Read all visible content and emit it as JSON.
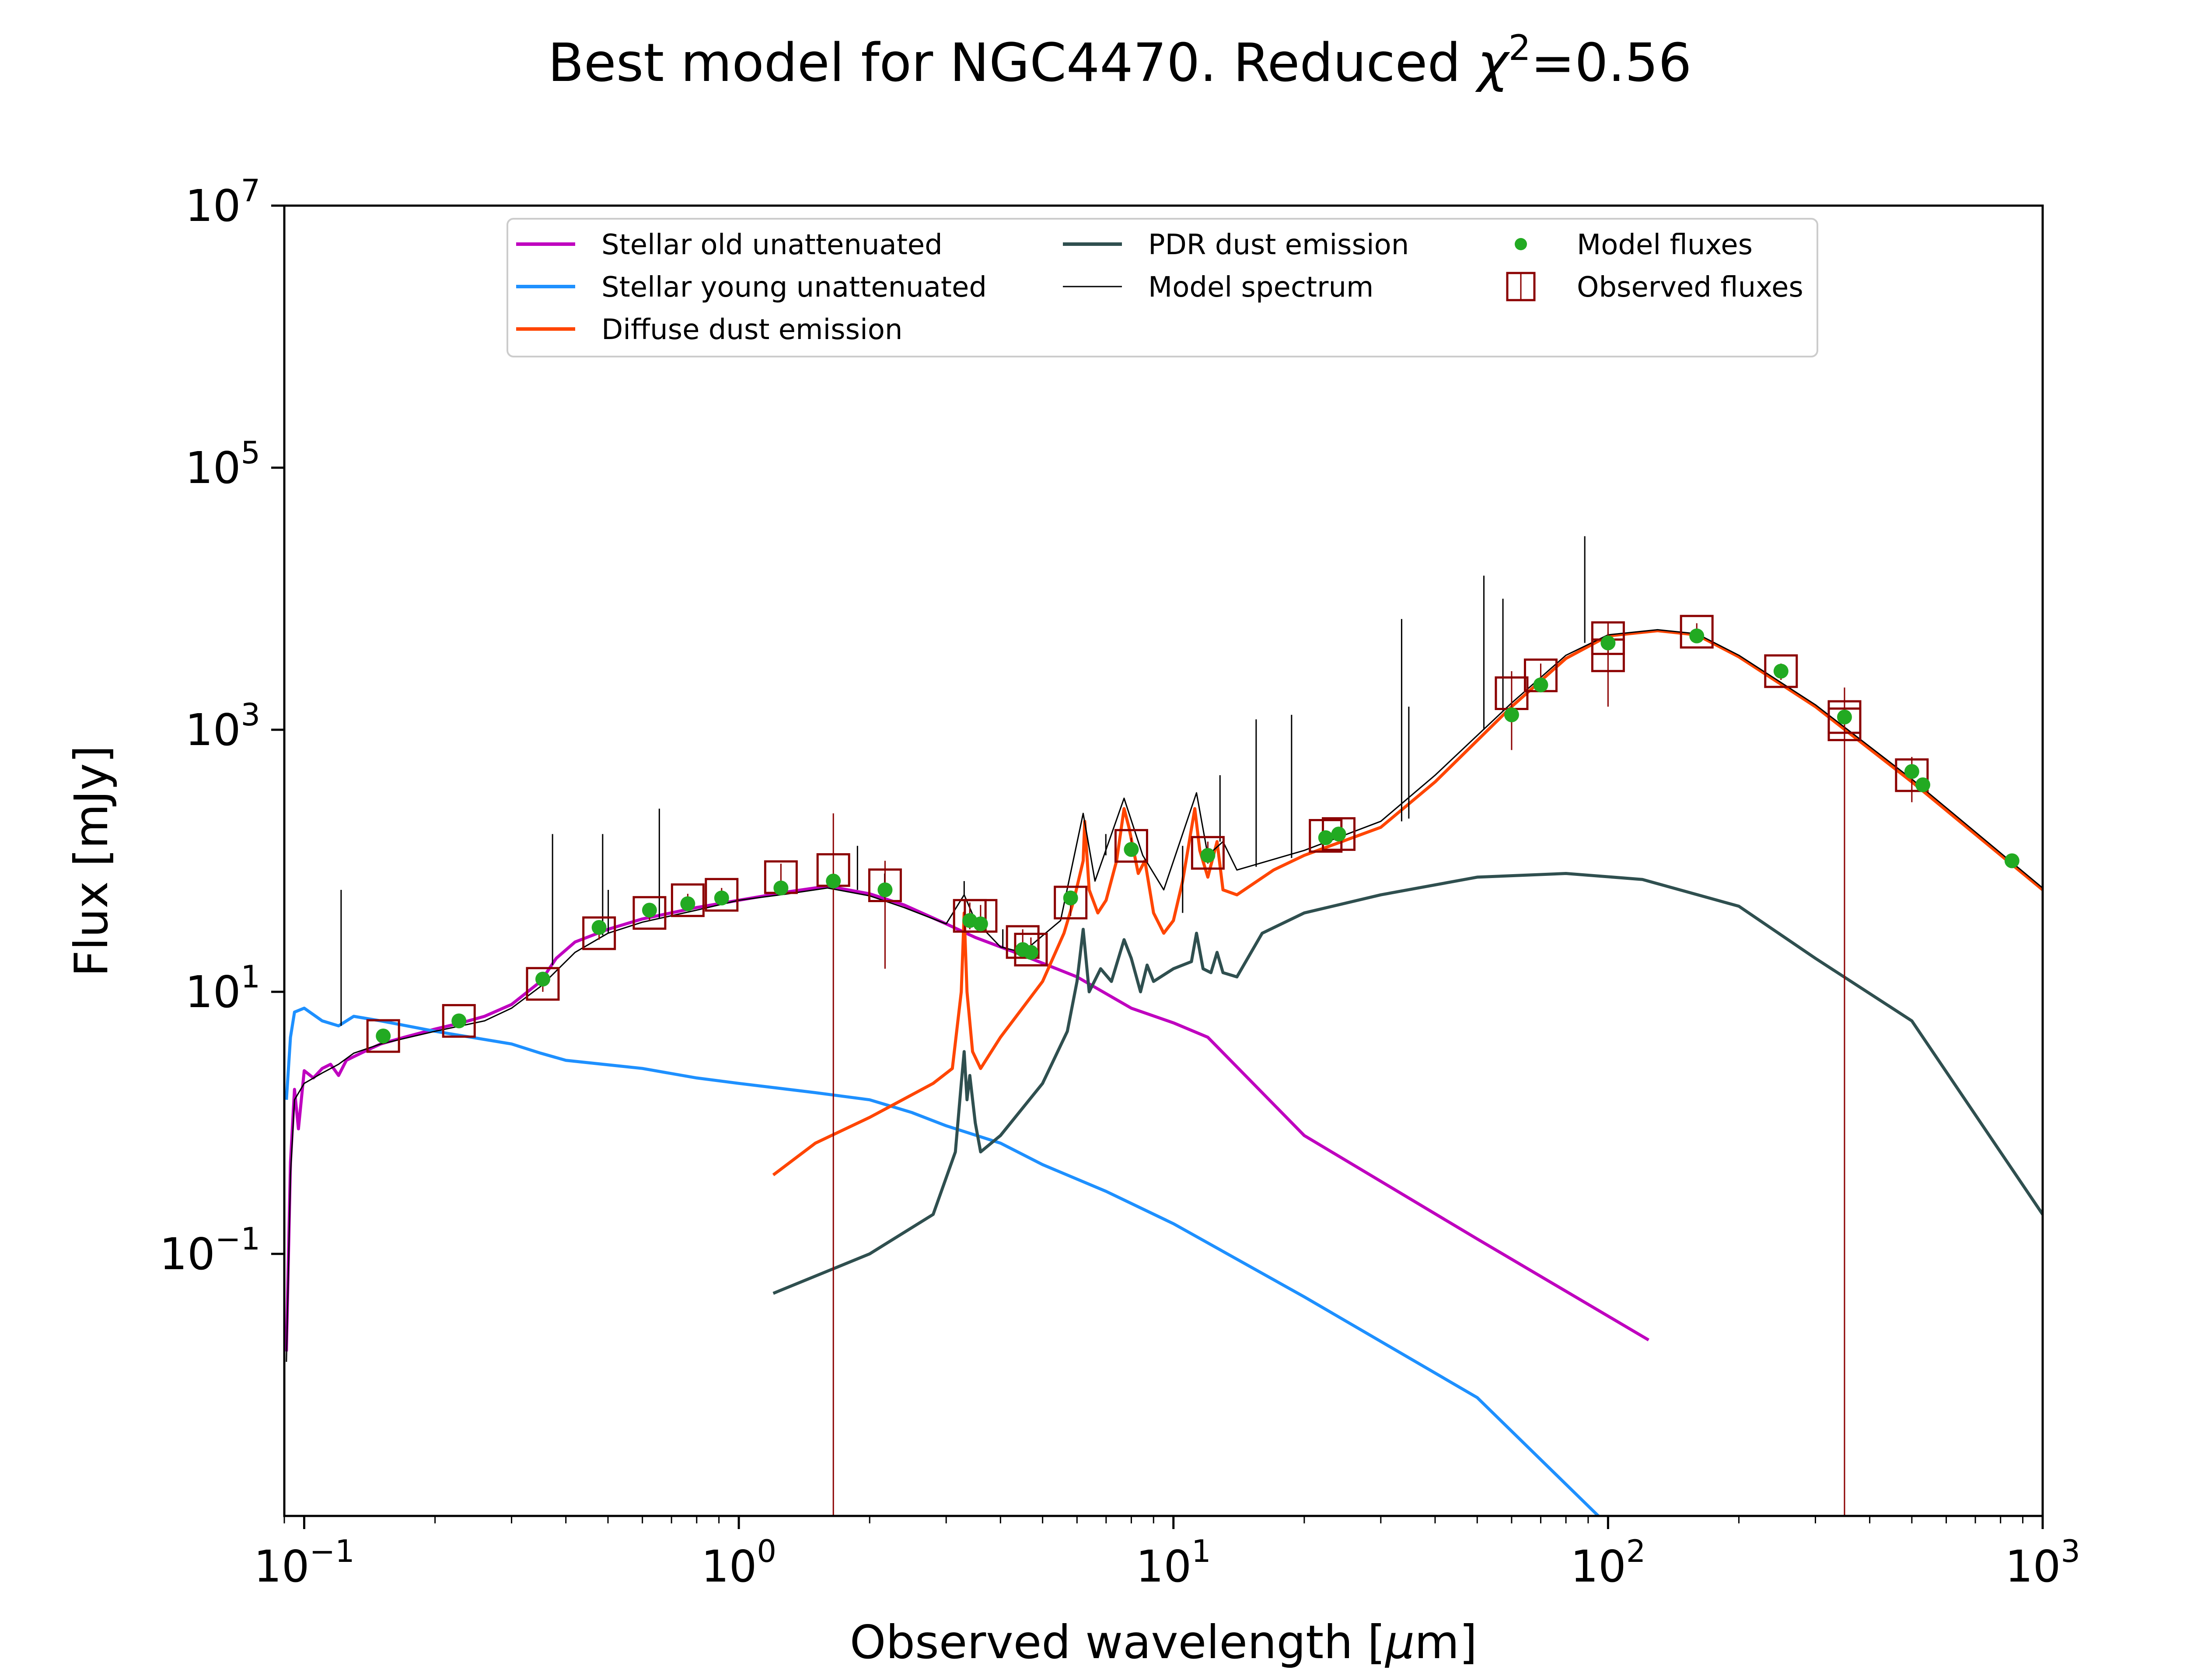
{
  "chart_data": {
    "type": "line",
    "title_main": "Best model for NGC4470. Reduced ",
    "title_chi": "χ",
    "title_sup": "2",
    "title_value": "=0.56",
    "xlabel_main": "Observed wavelength [",
    "xlabel_mu": "μ",
    "xlabel_unit": "m]",
    "ylabel": "Flux [mJy]",
    "x_scale": "log",
    "y_scale": "log",
    "xlim": [
      0.09,
      1000
    ],
    "ylim": [
      0.001,
      10000000
    ],
    "grid": false,
    "legend_placement": "top-center",
    "x_ticks": [
      {
        "value": 0.1,
        "base": "10",
        "exp": "−1"
      },
      {
        "value": 1,
        "base": "10",
        "exp": "0"
      },
      {
        "value": 10,
        "base": "10",
        "exp": "1"
      },
      {
        "value": 100,
        "base": "10",
        "exp": "2"
      },
      {
        "value": 1000,
        "base": "10",
        "exp": "3"
      }
    ],
    "y_ticks": [
      {
        "value": 0.1,
        "base": "10",
        "exp": "−1"
      },
      {
        "value": 10,
        "base": "10",
        "exp": "1"
      },
      {
        "value": 1000,
        "base": "10",
        "exp": "3"
      },
      {
        "value": 100000,
        "base": "10",
        "exp": "5"
      },
      {
        "value": 10000000,
        "base": "10",
        "exp": "7"
      }
    ],
    "legend": [
      {
        "label": "Stellar old unattenuated",
        "kind": "line",
        "color": "#bf00bf"
      },
      {
        "label": "Stellar young unattenuated",
        "kind": "line",
        "color": "#1e90ff"
      },
      {
        "label": "Diffuse dust emission",
        "kind": "line",
        "color": "#ff4500"
      },
      {
        "label": "PDR dust emission",
        "kind": "line",
        "color": "#2f4f4f"
      },
      {
        "label": "Model spectrum",
        "kind": "thin",
        "color": "#000000"
      },
      {
        "label": "Model fluxes",
        "kind": "dot",
        "color": "#22aa22"
      },
      {
        "label": "Observed fluxes",
        "kind": "square",
        "color": "#8b0000"
      }
    ],
    "series": [
      {
        "id": "stellar-old",
        "color": "#bf00bf",
        "width": 7,
        "points": [
          [
            0.091,
            0.018
          ],
          [
            0.093,
            0.5
          ],
          [
            0.095,
            1.8
          ],
          [
            0.097,
            0.9
          ],
          [
            0.1,
            2.5
          ],
          [
            0.105,
            2.2
          ],
          [
            0.11,
            2.6
          ],
          [
            0.115,
            2.8
          ],
          [
            0.12,
            2.3
          ],
          [
            0.125,
            3.0
          ],
          [
            0.13,
            3.2
          ],
          [
            0.14,
            3.6
          ],
          [
            0.15,
            4.0
          ],
          [
            0.17,
            4.5
          ],
          [
            0.2,
            5.2
          ],
          [
            0.23,
            5.8
          ],
          [
            0.26,
            6.5
          ],
          [
            0.3,
            8.0
          ],
          [
            0.35,
            12
          ],
          [
            0.38,
            18
          ],
          [
            0.42,
            24
          ],
          [
            0.5,
            30
          ],
          [
            0.6,
            36
          ],
          [
            0.8,
            44
          ],
          [
            1.0,
            50
          ],
          [
            1.3,
            58
          ],
          [
            1.6,
            64
          ],
          [
            2.0,
            56
          ],
          [
            2.4,
            46
          ],
          [
            3.0,
            33
          ],
          [
            3.5,
            26
          ],
          [
            4.5,
            19
          ],
          [
            6,
            13
          ],
          [
            8,
            7.5
          ],
          [
            10,
            5.8
          ],
          [
            12,
            4.5
          ],
          [
            20,
            0.8
          ],
          [
            50,
            0.13
          ],
          [
            124,
            0.022
          ]
        ]
      },
      {
        "id": "stellar-young",
        "color": "#1e90ff",
        "width": 7,
        "points": [
          [
            0.091,
            1.5
          ],
          [
            0.093,
            4.5
          ],
          [
            0.095,
            7.0
          ],
          [
            0.1,
            7.5
          ],
          [
            0.11,
            6.0
          ],
          [
            0.12,
            5.5
          ],
          [
            0.13,
            6.5
          ],
          [
            0.15,
            6.0
          ],
          [
            0.2,
            5.0
          ],
          [
            0.3,
            4.0
          ],
          [
            0.35,
            3.4
          ],
          [
            0.4,
            3.0
          ],
          [
            0.6,
            2.6
          ],
          [
            0.8,
            2.2
          ],
          [
            1.0,
            2.0
          ],
          [
            1.5,
            1.7
          ],
          [
            2.0,
            1.5
          ],
          [
            2.5,
            1.2
          ],
          [
            3.0,
            0.95
          ],
          [
            4,
            0.7
          ],
          [
            5,
            0.48
          ],
          [
            7,
            0.3
          ],
          [
            10,
            0.17
          ],
          [
            20,
            0.047
          ],
          [
            50,
            0.008
          ],
          [
            95,
            0.001
          ]
        ]
      },
      {
        "id": "diffuse-dust",
        "color": "#ff4500",
        "width": 7,
        "points": [
          [
            1.2,
            0.4
          ],
          [
            1.5,
            0.7
          ],
          [
            2,
            1.1
          ],
          [
            2.8,
            2.0
          ],
          [
            3.1,
            2.6
          ],
          [
            3.25,
            10
          ],
          [
            3.3,
            40
          ],
          [
            3.35,
            10
          ],
          [
            3.45,
            3.5
          ],
          [
            3.6,
            2.6
          ],
          [
            4,
            4.5
          ],
          [
            5,
            12
          ],
          [
            5.6,
            28
          ],
          [
            5.9,
            50
          ],
          [
            6.2,
            100
          ],
          [
            6.25,
            200
          ],
          [
            6.4,
            60
          ],
          [
            6.7,
            40
          ],
          [
            7,
            50
          ],
          [
            7.4,
            100
          ],
          [
            7.7,
            250
          ],
          [
            7.9,
            180
          ],
          [
            8.3,
            80
          ],
          [
            8.6,
            100
          ],
          [
            9,
            40
          ],
          [
            9.5,
            28
          ],
          [
            10,
            35
          ],
          [
            10.5,
            70
          ],
          [
            11.2,
            250
          ],
          [
            11.5,
            120
          ],
          [
            12,
            75
          ],
          [
            12.6,
            140
          ],
          [
            13,
            60
          ],
          [
            14,
            55
          ],
          [
            17,
            85
          ],
          [
            20,
            110
          ],
          [
            30,
            180
          ],
          [
            40,
            400
          ],
          [
            60,
            1500
          ],
          [
            80,
            3500
          ],
          [
            100,
            5200
          ],
          [
            130,
            5700
          ],
          [
            160,
            5300
          ],
          [
            200,
            3600
          ],
          [
            300,
            1500
          ],
          [
            500,
            400
          ],
          [
            1000,
            60
          ]
        ]
      },
      {
        "id": "pdr-dust",
        "color": "#2f4f4f",
        "width": 7,
        "points": [
          [
            1.2,
            0.05
          ],
          [
            2,
            0.1
          ],
          [
            2.8,
            0.2
          ],
          [
            3.15,
            0.6
          ],
          [
            3.25,
            2.0
          ],
          [
            3.3,
            3.5
          ],
          [
            3.35,
            1.5
          ],
          [
            3.4,
            2.3
          ],
          [
            3.5,
            1.0
          ],
          [
            3.6,
            0.6
          ],
          [
            4,
            0.8
          ],
          [
            5,
            2.0
          ],
          [
            5.7,
            5
          ],
          [
            6.0,
            12
          ],
          [
            6.2,
            30
          ],
          [
            6.4,
            10
          ],
          [
            6.8,
            15
          ],
          [
            7.2,
            12
          ],
          [
            7.7,
            25
          ],
          [
            8.0,
            18
          ],
          [
            8.4,
            10
          ],
          [
            8.7,
            16
          ],
          [
            9,
            12
          ],
          [
            10,
            15
          ],
          [
            11,
            17
          ],
          [
            11.3,
            28
          ],
          [
            11.7,
            15
          ],
          [
            12.2,
            14
          ],
          [
            12.6,
            20
          ],
          [
            13,
            14
          ],
          [
            14,
            13
          ],
          [
            16,
            28
          ],
          [
            20,
            40
          ],
          [
            30,
            55
          ],
          [
            50,
            75
          ],
          [
            80,
            80
          ],
          [
            120,
            72
          ],
          [
            200,
            45
          ],
          [
            300,
            18
          ],
          [
            500,
            6
          ],
          [
            1000,
            0.2
          ]
        ]
      },
      {
        "id": "model-spectrum",
        "color": "#000000",
        "width": 3,
        "points": [
          [
            0.091,
            0.015
          ],
          [
            0.093,
            0.4
          ],
          [
            0.095,
            1.5
          ],
          [
            0.1,
            2.0
          ],
          [
            0.11,
            2.4
          ],
          [
            0.12,
            2.8
          ],
          [
            0.13,
            3.4
          ],
          [
            0.15,
            4.0
          ],
          [
            0.2,
            5.0
          ],
          [
            0.26,
            6.0
          ],
          [
            0.3,
            7.5
          ],
          [
            0.35,
            11
          ],
          [
            0.42,
            20
          ],
          [
            0.5,
            28
          ],
          [
            0.6,
            34
          ],
          [
            0.8,
            42
          ],
          [
            1.0,
            50
          ],
          [
            1.3,
            56
          ],
          [
            1.6,
            62
          ],
          [
            2.0,
            54
          ],
          [
            2.4,
            44
          ],
          [
            3.0,
            33
          ],
          [
            3.3,
            55
          ],
          [
            3.5,
            35
          ],
          [
            4,
            22
          ],
          [
            4.5,
            20
          ],
          [
            5.5,
            35
          ],
          [
            6.2,
            230
          ],
          [
            6.6,
            70
          ],
          [
            7.7,
            300
          ],
          [
            8.5,
            110
          ],
          [
            9.5,
            60
          ],
          [
            11.3,
            330
          ],
          [
            12,
            110
          ],
          [
            13,
            140
          ],
          [
            14,
            85
          ],
          [
            20,
            120
          ],
          [
            30,
            200
          ],
          [
            40,
            450
          ],
          [
            60,
            1600
          ],
          [
            80,
            3700
          ],
          [
            100,
            5300
          ],
          [
            130,
            5800
          ],
          [
            160,
            5400
          ],
          [
            200,
            3700
          ],
          [
            300,
            1550
          ],
          [
            500,
            420
          ],
          [
            1000,
            62
          ]
        ]
      }
    ],
    "emission_lines": [
      {
        "x": 0.1216,
        "base": 5.5,
        "peak": 60
      },
      {
        "x": 0.3727,
        "base": 16,
        "peak": 160
      },
      {
        "x": 0.4861,
        "base": 27,
        "peak": 160
      },
      {
        "x": 0.5007,
        "base": 28,
        "peak": 60
      },
      {
        "x": 0.6563,
        "base": 36,
        "peak": 250
      },
      {
        "x": 1.875,
        "base": 60,
        "peak": 130
      },
      {
        "x": 2.166,
        "base": 52,
        "peak": 80
      },
      {
        "x": 3.3,
        "base": 55,
        "peak": 70
      },
      {
        "x": 4.05,
        "base": 22,
        "peak": 30
      },
      {
        "x": 6.99,
        "base": 110,
        "peak": 160
      },
      {
        "x": 10.5,
        "base": 40,
        "peak": 130
      },
      {
        "x": 12.8,
        "base": 140,
        "peak": 450
      },
      {
        "x": 15.5,
        "base": 90,
        "peak": 1200
      },
      {
        "x": 18.7,
        "base": 105,
        "peak": 1300
      },
      {
        "x": 33.5,
        "base": 200,
        "peak": 7000
      },
      {
        "x": 34.8,
        "base": 210,
        "peak": 1500
      },
      {
        "x": 51.8,
        "base": 1000,
        "peak": 15000
      },
      {
        "x": 57.3,
        "base": 1400,
        "peak": 10000
      },
      {
        "x": 88.4,
        "base": 4600,
        "peak": 30000
      }
    ],
    "model_fluxes": [
      [
        0.152,
        4.6
      ],
      [
        0.227,
        6.0
      ],
      [
        0.354,
        12.5
      ],
      [
        0.477,
        31
      ],
      [
        0.623,
        42
      ],
      [
        0.763,
        47
      ],
      [
        0.913,
        52
      ],
      [
        1.25,
        62
      ],
      [
        1.65,
        70
      ],
      [
        2.17,
        60
      ],
      [
        3.4,
        35
      ],
      [
        3.6,
        33
      ],
      [
        4.5,
        21
      ],
      [
        4.7,
        20
      ],
      [
        5.8,
        52
      ],
      [
        8.0,
        122
      ],
      [
        12,
        110
      ],
      [
        22.4,
        150
      ],
      [
        24,
        160
      ],
      [
        60,
        1300
      ],
      [
        70,
        2200
      ],
      [
        100,
        4600
      ],
      [
        160,
        5200
      ],
      [
        250,
        2800
      ],
      [
        350,
        1250
      ],
      [
        500,
        480
      ],
      [
        530,
        380
      ],
      [
        850,
        100
      ]
    ],
    "observed_fluxes": [
      {
        "x": 0.152,
        "y": 4.6,
        "lo": 4.0,
        "hi": 5.2
      },
      {
        "x": 0.227,
        "y": 6.0,
        "lo": 5.4,
        "hi": 6.8
      },
      {
        "x": 0.354,
        "y": 11.5,
        "lo": 10,
        "hi": 13
      },
      {
        "x": 0.477,
        "y": 28,
        "lo": 25,
        "hi": 32
      },
      {
        "x": 0.623,
        "y": 40,
        "lo": 35,
        "hi": 45
      },
      {
        "x": 0.763,
        "y": 50,
        "lo": 45,
        "hi": 56
      },
      {
        "x": 0.913,
        "y": 55,
        "lo": 50,
        "hi": 62
      },
      {
        "x": 1.25,
        "y": 75,
        "lo": 60,
        "hi": 95
      },
      {
        "x": 1.65,
        "y": 85,
        "lo": 0.001,
        "hi": 230
      },
      {
        "x": 2.17,
        "y": 65,
        "lo": 15,
        "hi": 100
      },
      {
        "x": 3.4,
        "y": 38,
        "lo": 30,
        "hi": 48
      },
      {
        "x": 3.6,
        "y": 38,
        "lo": 31,
        "hi": 46
      },
      {
        "x": 4.5,
        "y": 24,
        "lo": 20,
        "hi": 30
      },
      {
        "x": 4.7,
        "y": 21,
        "lo": 18,
        "hi": 26
      },
      {
        "x": 5.8,
        "y": 48,
        "lo": 38,
        "hi": 58
      },
      {
        "x": 8.0,
        "y": 130,
        "lo": 110,
        "hi": 150
      },
      {
        "x": 12,
        "y": 115,
        "lo": 95,
        "hi": 140
      },
      {
        "x": 22.4,
        "y": 155,
        "lo": 140,
        "hi": 170
      },
      {
        "x": 24,
        "y": 160,
        "lo": 145,
        "hi": 175
      },
      {
        "x": 60,
        "y": 1900,
        "lo": 700,
        "hi": 2800
      },
      {
        "x": 70,
        "y": 2600,
        "lo": 2000,
        "hi": 3200
      },
      {
        "x": 100,
        "y": 5000,
        "lo": 3800,
        "hi": 6500
      },
      {
        "x": 100,
        "y": 3700,
        "lo": 1500,
        "hi": 5500
      },
      {
        "x": 160,
        "y": 5600,
        "lo": 4700,
        "hi": 6500
      },
      {
        "x": 250,
        "y": 2800,
        "lo": 2400,
        "hi": 3200
      },
      {
        "x": 350,
        "y": 1100,
        "lo": 0.001,
        "hi": 2100
      },
      {
        "x": 350,
        "y": 1250,
        "lo": 900,
        "hi": 1600
      },
      {
        "x": 500,
        "y": 450,
        "lo": 280,
        "hi": 620
      }
    ]
  }
}
